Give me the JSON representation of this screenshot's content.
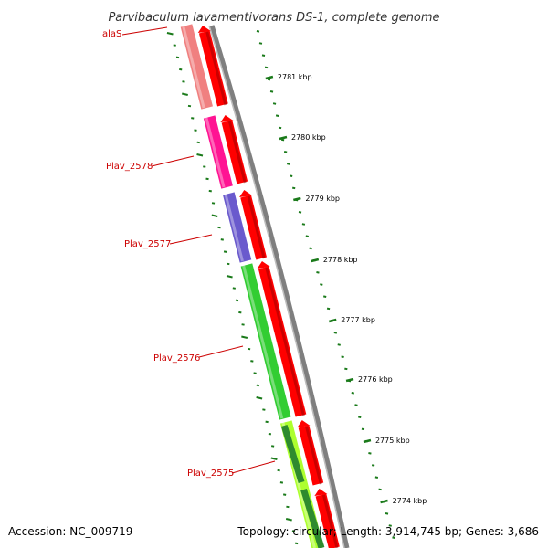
{
  "title": "Parvibaculum lavamentivorans DS-1, complete genome",
  "accession": "Accession: NC_009719",
  "topology": "Topology: circular; Length: 3,914,745 bp; Genes: 3,686",
  "colors": {
    "backbone": "#808080",
    "cds": "#ff0000",
    "tick": "#1a7a1a",
    "label": "#cc0000"
  },
  "ticks": [
    "2781 kbp",
    "2780 kbp",
    "2779 kbp",
    "2778 kbp",
    "2777 kbp",
    "2776 kbp",
    "2775 kbp",
    "2774 kbp"
  ],
  "genes": [
    {
      "name": "alaS",
      "color": "#f08080"
    },
    {
      "name": "Plav_2578",
      "color": "#ff1493"
    },
    {
      "name": "Plav_2577",
      "color": "#6a5acd"
    },
    {
      "name": "Plav_2576",
      "color": "#32cd32"
    },
    {
      "name": "Plav_2575",
      "color": "#adff2f"
    }
  ]
}
